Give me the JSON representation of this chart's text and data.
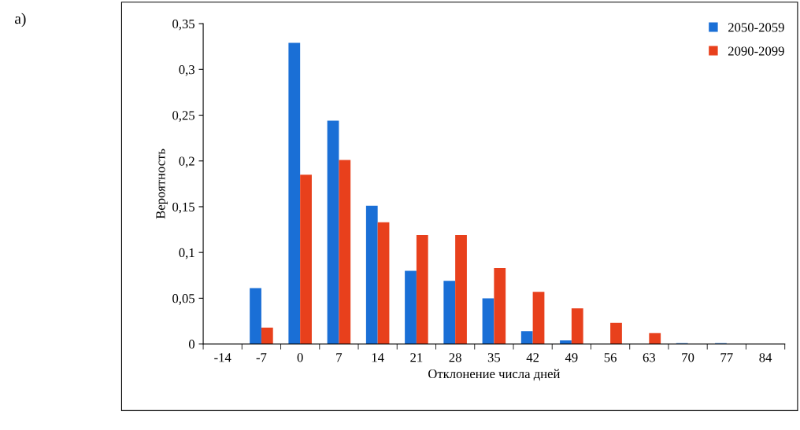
{
  "chart_data": {
    "type": "bar",
    "xlabel": "Отклонение числа дней",
    "ylabel": "Вероятность",
    "annotations": [
      "a)"
    ],
    "categories": [
      "-14",
      "-7",
      "0",
      "7",
      "14",
      "21",
      "28",
      "35",
      "42",
      "49",
      "56",
      "63",
      "70",
      "77",
      "84"
    ],
    "series": [
      {
        "name": "2050-2059",
        "color": "#1a6fd6",
        "values": [
          0,
          0.061,
          0.329,
          0.244,
          0.151,
          0.08,
          0.069,
          0.05,
          0.014,
          0.004,
          0,
          0,
          0.001,
          0.001,
          0
        ]
      },
      {
        "name": "2090-2099",
        "color": "#e8401c",
        "values": [
          0,
          0.018,
          0.185,
          0.201,
          0.133,
          0.119,
          0.119,
          0.083,
          0.057,
          0.039,
          0.023,
          0.012,
          0,
          0,
          0
        ]
      }
    ],
    "ylim": [
      0,
      0.35
    ],
    "yticks": [
      {
        "value": 0,
        "label": "0"
      },
      {
        "value": 0.05,
        "label": "0,05"
      },
      {
        "value": 0.1,
        "label": "0,1"
      },
      {
        "value": 0.15,
        "label": "0,15"
      },
      {
        "value": 0.2,
        "label": "0,2"
      },
      {
        "value": 0.25,
        "label": "0,25"
      },
      {
        "value": 0.3,
        "label": "0,3"
      },
      {
        "value": 0.35,
        "label": "0,35"
      }
    ],
    "grid": false,
    "legend": "top right"
  }
}
